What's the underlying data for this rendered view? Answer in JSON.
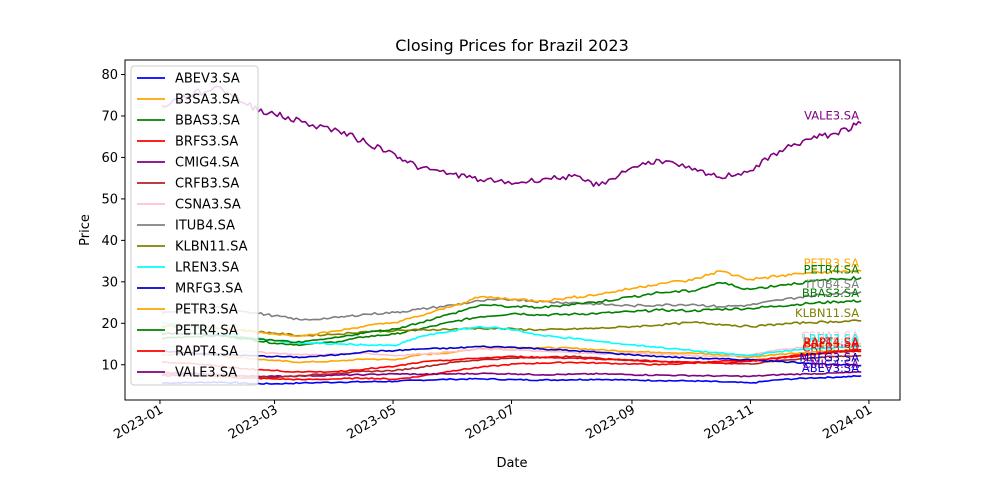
{
  "chart_data": {
    "type": "line",
    "title": "Closing Prices for Brazil 2023",
    "xlabel": "Date",
    "ylabel": "Price",
    "xlim": [
      "2022-12-14",
      "2024-01-17"
    ],
    "ylim": [
      1.5,
      83.5
    ],
    "x_ticks": [
      "2023-01",
      "2023-03",
      "2023-05",
      "2023-07",
      "2023-09",
      "2023-11",
      "2024-01"
    ],
    "y_ticks": [
      10,
      20,
      30,
      40,
      50,
      60,
      70,
      80
    ],
    "grid": false,
    "legend_position": "upper-left",
    "x": [
      "2023-01-02",
      "2023-01-16",
      "2023-02-01",
      "2023-02-15",
      "2023-03-01",
      "2023-03-15",
      "2023-04-03",
      "2023-04-17",
      "2023-05-02",
      "2023-05-15",
      "2023-06-01",
      "2023-06-15",
      "2023-07-03",
      "2023-07-17",
      "2023-08-01",
      "2023-08-15",
      "2023-09-01",
      "2023-09-15",
      "2023-10-02",
      "2023-10-16",
      "2023-11-01",
      "2023-11-16",
      "2023-12-01",
      "2023-12-15",
      "2023-12-28"
    ],
    "series": [
      {
        "name": "ABEV3.SA",
        "color": "#0000ff",
        "values": [
          5.6,
          5.7,
          5.8,
          5.5,
          5.4,
          5.6,
          5.8,
          5.9,
          6.0,
          6.3,
          6.5,
          6.6,
          6.4,
          6.3,
          6.4,
          6.5,
          6.3,
          6.2,
          6.1,
          5.9,
          5.6,
          6.4,
          6.8,
          7.0,
          7.3
        ]
      },
      {
        "name": "B3SA3.SA",
        "color": "#ffa500",
        "values": [
          12.4,
          12.6,
          12.2,
          11.6,
          11.0,
          10.6,
          10.9,
          11.4,
          11.2,
          12.4,
          13.0,
          14.0,
          14.2,
          14.1,
          14.0,
          13.6,
          13.2,
          13.0,
          12.8,
          12.4,
          11.8,
          12.6,
          13.0,
          13.4,
          13.6
        ]
      },
      {
        "name": "BBAS3.SA",
        "color": "#008000",
        "values": [
          16.4,
          16.8,
          17.0,
          16.2,
          15.2,
          14.8,
          15.6,
          16.8,
          17.4,
          18.6,
          20.4,
          21.6,
          22.4,
          22.0,
          22.2,
          22.4,
          22.8,
          23.2,
          23.0,
          23.4,
          23.6,
          24.2,
          24.8,
          25.2,
          25.4
        ]
      },
      {
        "name": "BRFS3.SA",
        "color": "#ff0000",
        "values": [
          7.8,
          7.6,
          7.2,
          6.8,
          6.6,
          6.4,
          6.6,
          6.8,
          6.5,
          7.2,
          8.6,
          9.4,
          10.2,
          10.4,
          10.6,
          10.4,
          10.2,
          10.0,
          10.4,
          10.8,
          11.0,
          11.6,
          12.4,
          13.0,
          13.2
        ]
      },
      {
        "name": "CMIG4.SA",
        "color": "#800080",
        "values": [
          7.4,
          7.5,
          7.6,
          7.3,
          7.2,
          7.3,
          7.5,
          7.6,
          7.8,
          7.7,
          7.8,
          7.9,
          7.8,
          7.6,
          7.7,
          7.8,
          7.6,
          7.5,
          7.4,
          7.3,
          7.2,
          7.6,
          7.8,
          8.0,
          8.2
        ]
      },
      {
        "name": "CRFB3.SA",
        "color": "#b22222",
        "values": [
          8.2,
          8.0,
          7.6,
          7.2,
          7.0,
          7.4,
          8.0,
          8.4,
          8.6,
          9.4,
          10.6,
          11.2,
          11.6,
          11.8,
          12.0,
          11.6,
          11.0,
          10.8,
          10.6,
          10.4,
          10.2,
          11.0,
          11.6,
          12.0,
          12.2
        ]
      },
      {
        "name": "CSNA3.SA",
        "color": "#ffc0cb",
        "values": [
          14.4,
          14.2,
          13.6,
          13.2,
          12.8,
          12.4,
          12.6,
          12.8,
          12.2,
          12.6,
          13.2,
          13.8,
          13.6,
          13.2,
          13.0,
          12.6,
          12.8,
          12.6,
          12.2,
          12.0,
          12.4,
          13.6,
          14.4,
          14.8,
          15.0
        ]
      },
      {
        "name": "ITUB4.SA",
        "color": "#808080",
        "values": [
          22.4,
          23.2,
          23.8,
          22.8,
          21.8,
          20.8,
          21.4,
          22.2,
          22.6,
          23.4,
          24.4,
          25.4,
          25.8,
          25.2,
          25.0,
          24.6,
          24.2,
          24.4,
          24.6,
          24.0,
          24.4,
          25.6,
          26.6,
          27.2,
          27.6
        ]
      },
      {
        "name": "KLBN11.SA",
        "color": "#808000",
        "values": [
          19.2,
          19.4,
          18.8,
          18.2,
          17.6,
          17.0,
          17.4,
          18.0,
          18.2,
          18.4,
          18.6,
          18.8,
          18.6,
          18.4,
          18.6,
          18.8,
          19.2,
          19.6,
          20.2,
          19.8,
          19.2,
          19.8,
          20.2,
          20.4,
          20.6
        ]
      },
      {
        "name": "LREN3.SA",
        "color": "#00ffff",
        "values": [
          20.2,
          19.4,
          17.8,
          16.6,
          15.8,
          15.2,
          15.0,
          14.8,
          14.6,
          16.8,
          18.2,
          19.2,
          18.4,
          17.0,
          16.4,
          15.6,
          14.8,
          14.2,
          13.4,
          12.8,
          12.2,
          13.2,
          13.8,
          14.2,
          14.4
        ]
      },
      {
        "name": "MRFG3.SA",
        "color": "#0000cd",
        "values": [
          13.2,
          12.8,
          12.6,
          12.2,
          12.0,
          11.8,
          12.4,
          13.2,
          13.4,
          13.8,
          14.0,
          14.4,
          14.2,
          13.8,
          13.4,
          13.0,
          12.4,
          12.0,
          11.6,
          11.4,
          11.2,
          10.8,
          10.4,
          10.0,
          9.8
        ]
      },
      {
        "name": "PETR3.SA",
        "color": "#ffa500",
        "values": [
          19.4,
          19.6,
          18.8,
          18.2,
          17.4,
          17.0,
          18.2,
          19.4,
          20.2,
          21.8,
          24.2,
          26.4,
          25.8,
          25.4,
          26.2,
          27.0,
          28.4,
          29.6,
          30.4,
          32.6,
          30.6,
          31.4,
          32.2,
          32.4,
          32.6
        ]
      },
      {
        "name": "PETR4.SA",
        "color": "#008000",
        "values": [
          17.4,
          17.6,
          17.0,
          16.4,
          15.8,
          15.4,
          16.6,
          17.8,
          18.6,
          20.2,
          22.4,
          24.4,
          24.0,
          23.8,
          24.6,
          25.2,
          26.4,
          27.4,
          27.8,
          29.8,
          28.2,
          29.2,
          30.0,
          30.6,
          31.0
        ]
      },
      {
        "name": "RAPT4.SA",
        "color": "#ff0000",
        "values": [
          10.6,
          10.4,
          9.6,
          9.0,
          8.6,
          8.2,
          8.4,
          9.0,
          9.6,
          10.6,
          11.2,
          11.6,
          12.0,
          11.8,
          11.6,
          11.4,
          11.2,
          10.8,
          10.6,
          10.4,
          10.8,
          11.8,
          12.6,
          13.2,
          13.6
        ]
      },
      {
        "name": "VALE3.SA",
        "color": "#800080",
        "values": [
          72.4,
          75.0,
          77.0,
          72.6,
          70.4,
          68.6,
          66.4,
          63.6,
          60.8,
          57.4,
          56.0,
          54.6,
          53.8,
          54.8,
          55.4,
          53.2,
          57.6,
          59.4,
          57.0,
          55.2,
          56.8,
          61.6,
          64.4,
          65.8,
          68.2
        ]
      }
    ]
  }
}
